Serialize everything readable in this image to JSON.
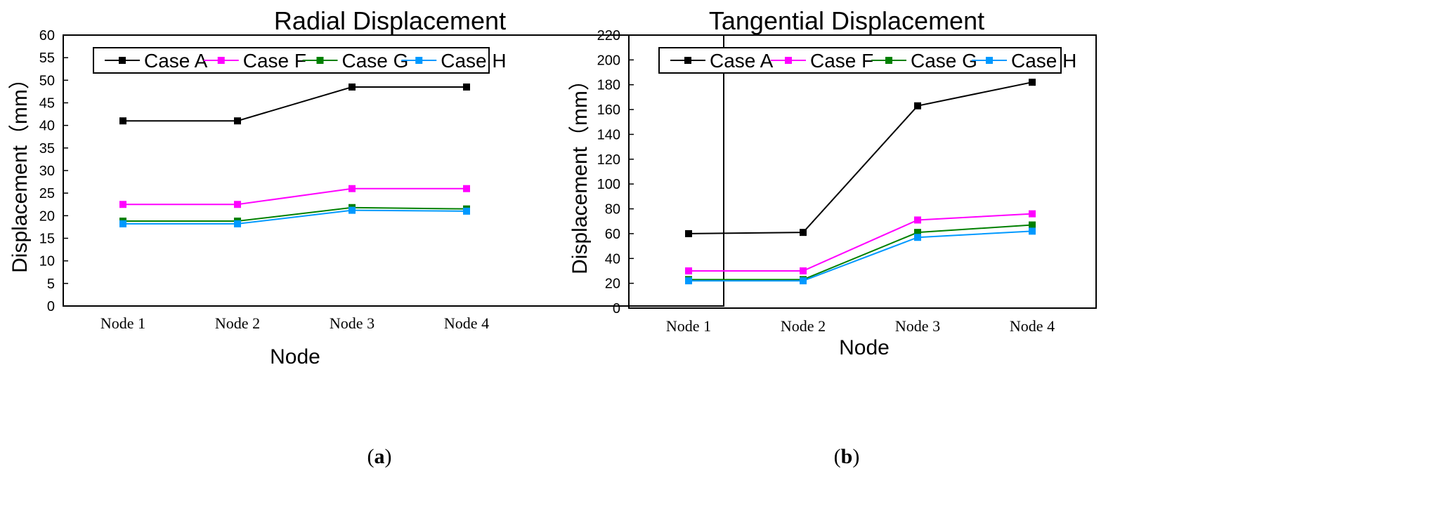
{
  "chart_data": [
    {
      "type": "line",
      "title": "Radial Displacement",
      "xlabel": "Node",
      "ylabel": "Displacement（mm）",
      "categories": [
        "Node 1",
        "Node 2",
        "Node 3",
        "Node 4"
      ],
      "ylim": [
        0,
        60
      ],
      "ytick_step": 5,
      "series": [
        {
          "name": "Case A",
          "color": "#000000",
          "values": [
            41,
            41,
            48.5,
            48.5
          ]
        },
        {
          "name": "Case F",
          "color": "#ff00ff",
          "values": [
            22.5,
            22.5,
            26,
            26
          ]
        },
        {
          "name": "Case G",
          "color": "#008000",
          "values": [
            18.8,
            18.8,
            21.8,
            21.5
          ]
        },
        {
          "name": "Case H",
          "color": "#0099ff",
          "values": [
            18.2,
            18.2,
            21.2,
            21
          ]
        }
      ],
      "legend": "top",
      "panel": {
        "open": "(",
        "letter": "a",
        "close": ")"
      }
    },
    {
      "type": "line",
      "title": "Tangential Displacement",
      "xlabel": "Node",
      "ylabel": "Displacement（mm）",
      "categories": [
        "Node 1",
        "Node 2",
        "Node 3",
        "Node 4"
      ],
      "ylim": [
        0,
        220
      ],
      "ytick_step": 20,
      "series": [
        {
          "name": "Case A",
          "color": "#000000",
          "values": [
            60,
            61,
            163,
            182
          ]
        },
        {
          "name": "Case F",
          "color": "#ff00ff",
          "values": [
            30,
            30,
            71,
            76
          ]
        },
        {
          "name": "Case G",
          "color": "#008000",
          "values": [
            23,
            23,
            61,
            67
          ]
        },
        {
          "name": "Case H",
          "color": "#0099ff",
          "values": [
            22,
            22,
            57,
            62
          ]
        }
      ],
      "legend": "top",
      "panel": {
        "open": "(",
        "letter": "b",
        "close": ")"
      }
    }
  ]
}
